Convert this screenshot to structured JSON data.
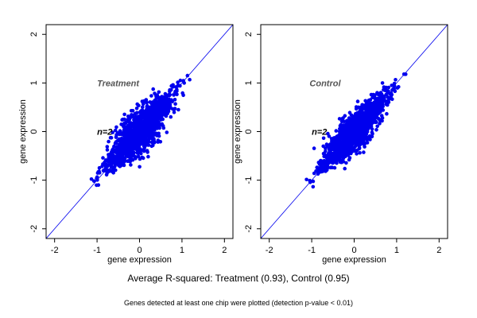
{
  "chart_data": [
    {
      "type": "scatter",
      "panel_label": "Treatment",
      "n_label": "n=2",
      "xlabel": "gene expression",
      "ylabel": "gene expression",
      "xlim": [
        -2.2,
        2.2
      ],
      "ylim": [
        -2.2,
        2.2
      ],
      "x_ticks": [
        "-2",
        "-1",
        "0",
        "1",
        "2"
      ],
      "y_ticks": [
        "-2",
        "-1",
        "0",
        "1",
        "2"
      ],
      "reference_line": "y = x",
      "point_color": "#0000ee",
      "line_color": "#0000ee",
      "cloud": {
        "center": [
          0,
          0
        ],
        "x_range": [
          -1.1,
          1.2
        ],
        "y_range": [
          -1.05,
          1.25
        ],
        "approx_r_squared": 0.93
      }
    },
    {
      "type": "scatter",
      "panel_label": "Control",
      "n_label": "n=2",
      "xlabel": "gene expression",
      "ylabel": "gene expression",
      "xlim": [
        -2.2,
        2.2
      ],
      "ylim": [
        -2.2,
        2.2
      ],
      "x_ticks": [
        "-2",
        "-1",
        "0",
        "1",
        "2"
      ],
      "y_ticks": [
        "-2",
        "-1",
        "0",
        "1",
        "2"
      ],
      "reference_line": "y = x",
      "point_color": "#0000ee",
      "line_color": "#0000ee",
      "cloud": {
        "center": [
          0,
          0
        ],
        "x_range": [
          -1.1,
          1.25
        ],
        "y_range": [
          -1.05,
          1.25
        ],
        "approx_r_squared": 0.95
      }
    }
  ],
  "caption_main": "Average R-squared: Treatment (0.93), Control (0.95)",
  "caption_sub": "Genes detected at least one chip were plotted (detection p-value < 0.01)"
}
